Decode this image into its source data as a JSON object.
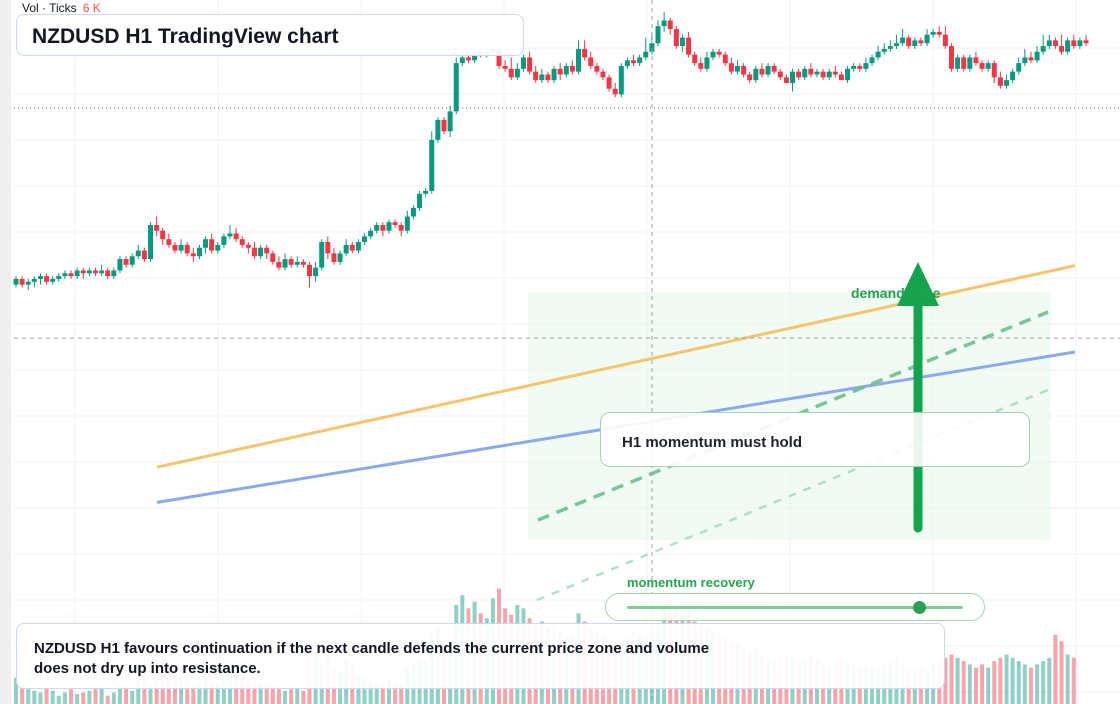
{
  "volume_legend": {
    "label": "Vol · Ticks",
    "value": "6 K"
  },
  "title": "NZDUSD H1 TradingView chart",
  "callout_text": "H1 momentum must hold",
  "zone_label": "demand zone",
  "momentum_label": "momentum recovery",
  "momentum_level": 0.87,
  "summary": "NZDUSD H1 favours continuation if the next candle defends the current price zone and volume does not dry up into resistance.",
  "colors": {
    "up": "#089981",
    "down": "#f23645",
    "ema_fast": "#f7c46c",
    "ema_slow": "#8aa9ee",
    "zone": "#e6f6ea",
    "arrow": "#14a44d",
    "trend": "#69c289"
  },
  "chart_data": {
    "type": "candlestick",
    "symbol": "NZDUSD",
    "timeframe": "H1",
    "price_range": [
      0,
      100
    ],
    "up_color": "#089981",
    "down_color": "#f23645",
    "candles": [
      [
        4,
        6,
        3,
        7
      ],
      [
        6,
        4,
        3,
        7
      ],
      [
        4,
        5,
        2,
        6
      ],
      [
        5,
        6,
        3,
        7
      ],
      [
        6,
        7,
        4,
        8
      ],
      [
        7,
        5,
        4,
        8
      ],
      [
        5,
        6,
        4,
        7
      ],
      [
        6,
        7,
        5,
        8
      ],
      [
        7,
        8,
        6,
        9
      ],
      [
        8,
        7,
        6,
        9
      ],
      [
        7,
        9,
        6,
        10
      ],
      [
        9,
        8,
        6,
        10
      ],
      [
        8,
        9,
        7,
        10
      ],
      [
        9,
        8,
        7,
        10
      ],
      [
        8,
        9,
        7,
        11
      ],
      [
        9,
        7,
        6,
        10
      ],
      [
        7,
        9,
        6,
        10
      ],
      [
        9,
        13,
        8,
        14
      ],
      [
        13,
        11,
        10,
        14
      ],
      [
        11,
        14,
        10,
        15
      ],
      [
        14,
        16,
        13,
        18
      ],
      [
        16,
        13,
        12,
        17
      ],
      [
        13,
        25,
        12,
        26
      ],
      [
        25,
        23,
        21,
        28
      ],
      [
        23,
        20,
        18,
        24
      ],
      [
        20,
        18,
        17,
        22
      ],
      [
        18,
        16,
        15,
        19
      ],
      [
        16,
        18,
        15,
        20
      ],
      [
        18,
        15,
        14,
        19
      ],
      [
        15,
        14,
        12,
        17
      ],
      [
        14,
        17,
        13,
        18
      ],
      [
        17,
        20,
        15,
        21
      ],
      [
        20,
        16,
        15,
        22
      ],
      [
        16,
        18,
        15,
        19
      ],
      [
        18,
        21,
        17,
        22
      ],
      [
        21,
        22,
        20,
        25
      ],
      [
        22,
        20,
        19,
        24
      ],
      [
        20,
        18,
        17,
        21
      ],
      [
        18,
        17,
        15,
        19
      ],
      [
        17,
        14,
        13,
        19
      ],
      [
        14,
        17,
        13,
        18
      ],
      [
        17,
        15,
        13,
        18
      ],
      [
        15,
        12,
        11,
        16
      ],
      [
        12,
        10,
        9,
        14
      ],
      [
        10,
        13,
        9,
        15
      ],
      [
        13,
        11,
        10,
        14
      ],
      [
        11,
        12,
        10,
        14
      ],
      [
        12,
        11,
        10,
        13
      ],
      [
        11,
        7,
        3,
        12
      ],
      [
        7,
        10,
        5,
        12
      ],
      [
        10,
        19,
        9,
        20
      ],
      [
        19,
        15,
        13,
        21
      ],
      [
        15,
        12,
        11,
        17
      ],
      [
        12,
        15,
        11,
        16
      ],
      [
        15,
        18,
        14,
        20
      ],
      [
        18,
        16,
        15,
        19
      ],
      [
        16,
        19,
        15,
        20
      ],
      [
        19,
        21,
        18,
        22
      ],
      [
        21,
        23,
        20,
        24
      ],
      [
        23,
        25,
        22,
        26
      ],
      [
        25,
        23,
        21,
        26
      ],
      [
        23,
        26,
        22,
        27
      ],
      [
        26,
        25,
        24,
        27
      ],
      [
        25,
        23,
        21,
        26
      ],
      [
        23,
        28,
        22,
        30
      ],
      [
        28,
        31,
        27,
        32
      ],
      [
        31,
        36,
        30,
        37
      ],
      [
        36,
        37,
        35,
        38
      ],
      [
        37,
        55,
        36,
        58
      ],
      [
        55,
        62,
        54,
        63
      ],
      [
        62,
        58,
        57,
        63
      ],
      [
        58,
        65,
        56,
        67
      ],
      [
        65,
        82,
        64,
        84
      ],
      [
        82,
        84,
        81,
        85
      ],
      [
        84,
        83,
        82,
        86
      ],
      [
        83,
        86,
        82,
        87
      ],
      [
        86,
        85,
        84,
        88
      ],
      [
        85,
        86,
        84,
        87
      ],
      [
        86,
        87,
        85,
        88
      ],
      [
        87,
        81,
        80,
        88
      ],
      [
        81,
        80,
        79,
        83
      ],
      [
        80,
        77,
        76,
        84
      ],
      [
        77,
        80,
        76,
        82
      ],
      [
        80,
        84,
        79,
        85
      ],
      [
        84,
        79,
        78,
        86
      ],
      [
        79,
        76,
        75,
        81
      ],
      [
        76,
        78,
        75,
        80
      ],
      [
        78,
        76,
        75,
        79
      ],
      [
        76,
        80,
        75,
        81
      ],
      [
        80,
        78,
        76,
        82
      ],
      [
        78,
        81,
        77,
        82
      ],
      [
        81,
        79,
        78,
        83
      ],
      [
        79,
        87,
        78,
        90
      ],
      [
        87,
        84,
        83,
        90
      ],
      [
        84,
        81,
        80,
        86
      ],
      [
        81,
        79,
        78,
        82
      ],
      [
        79,
        77,
        76,
        80
      ],
      [
        77,
        73,
        72,
        78
      ],
      [
        73,
        71,
        70,
        75
      ],
      [
        71,
        81,
        70,
        82
      ],
      [
        81,
        83,
        80,
        84
      ],
      [
        83,
        82,
        81,
        85
      ],
      [
        82,
        84,
        81,
        85
      ],
      [
        84,
        86,
        83,
        91
      ],
      [
        86,
        89,
        85,
        93
      ],
      [
        89,
        95,
        88,
        97
      ],
      [
        95,
        97,
        93,
        100
      ],
      [
        97,
        94,
        92,
        98
      ],
      [
        94,
        88,
        87,
        95
      ],
      [
        88,
        91,
        86,
        92
      ],
      [
        91,
        85,
        84,
        93
      ],
      [
        85,
        82,
        81,
        86
      ],
      [
        82,
        80,
        79,
        84
      ],
      [
        80,
        84,
        79,
        86
      ],
      [
        84,
        86,
        83,
        87
      ],
      [
        86,
        85,
        84,
        87
      ],
      [
        85,
        82,
        81,
        86
      ],
      [
        82,
        79,
        78,
        84
      ],
      [
        79,
        81,
        78,
        83
      ],
      [
        81,
        78,
        77,
        82
      ],
      [
        78,
        76,
        75,
        79
      ],
      [
        76,
        80,
        75,
        81
      ],
      [
        80,
        78,
        77,
        82
      ],
      [
        78,
        81,
        77,
        82
      ],
      [
        81,
        79,
        78,
        82
      ],
      [
        79,
        77,
        76,
        80
      ],
      [
        77,
        75,
        75,
        78
      ],
      [
        75,
        79,
        72,
        80
      ],
      [
        79,
        77,
        76,
        80
      ],
      [
        77,
        80,
        76,
        81
      ],
      [
        80,
        78,
        77,
        82
      ],
      [
        78,
        79,
        77,
        80
      ],
      [
        79,
        77,
        76,
        80
      ],
      [
        77,
        79,
        76,
        80
      ],
      [
        79,
        78,
        77,
        81
      ],
      [
        78,
        76,
        76,
        79
      ],
      [
        76,
        80,
        75,
        81
      ],
      [
        80,
        81,
        79,
        82
      ],
      [
        81,
        80,
        79,
        82
      ],
      [
        80,
        82,
        79,
        84
      ],
      [
        82,
        84,
        81,
        85
      ],
      [
        84,
        86,
        83,
        88
      ],
      [
        86,
        87,
        85,
        89
      ],
      [
        87,
        88,
        86,
        90
      ],
      [
        88,
        89,
        87,
        92
      ],
      [
        89,
        91,
        88,
        94
      ],
      [
        91,
        88,
        87,
        92
      ],
      [
        88,
        90,
        87,
        91
      ],
      [
        90,
        89,
        88,
        91
      ],
      [
        89,
        92,
        88,
        94
      ],
      [
        92,
        93,
        91,
        94
      ],
      [
        93,
        92,
        91,
        95
      ],
      [
        92,
        88,
        87,
        95
      ],
      [
        88,
        80,
        79,
        89
      ],
      [
        80,
        84,
        79,
        85
      ],
      [
        84,
        80,
        79,
        85
      ],
      [
        80,
        84,
        79,
        85
      ],
      [
        84,
        82,
        81,
        86
      ],
      [
        82,
        80,
        79,
        83
      ],
      [
        80,
        82,
        79,
        83
      ],
      [
        82,
        77,
        75,
        83
      ],
      [
        77,
        74,
        73,
        79
      ],
      [
        74,
        76,
        73,
        78
      ],
      [
        76,
        79,
        75,
        80
      ],
      [
        79,
        82,
        78,
        84
      ],
      [
        82,
        84,
        81,
        87
      ],
      [
        84,
        83,
        82,
        86
      ],
      [
        83,
        86,
        82,
        88
      ],
      [
        86,
        88,
        85,
        92
      ],
      [
        88,
        90,
        87,
        92
      ],
      [
        90,
        88,
        87,
        91
      ],
      [
        88,
        86,
        85,
        92
      ],
      [
        86,
        90,
        85,
        91
      ],
      [
        90,
        88,
        87,
        92
      ],
      [
        88,
        90,
        87,
        91
      ],
      [
        90,
        89,
        88,
        92
      ]
    ],
    "volume": [
      16,
      12,
      9,
      8,
      7,
      10,
      8,
      5,
      7,
      9,
      6,
      7,
      8,
      9,
      10,
      5,
      7,
      12,
      10,
      8,
      14,
      16,
      11,
      22,
      26,
      20,
      18,
      17,
      15,
      12,
      14,
      16,
      13,
      12,
      15,
      25,
      18,
      16,
      15,
      14,
      12,
      11,
      10,
      9,
      8,
      9,
      10,
      8,
      36,
      30,
      24,
      28,
      22,
      20,
      26,
      24,
      18,
      16,
      14,
      13,
      12,
      14,
      13,
      12,
      22,
      24,
      28,
      26,
      42,
      46,
      38,
      34,
      60,
      66,
      58,
      62,
      55,
      52,
      64,
      70,
      58,
      54,
      60,
      58,
      52,
      48,
      50,
      46,
      48,
      44,
      40,
      42,
      55,
      50,
      46,
      44,
      42,
      40,
      38,
      36,
      40,
      44,
      42,
      40,
      44,
      48,
      60,
      64,
      58,
      54,
      56,
      50,
      48,
      46,
      44,
      42,
      40,
      38,
      36,
      34,
      32,
      34,
      30,
      28,
      26,
      28,
      30,
      28,
      26,
      28,
      30,
      26,
      24,
      22,
      26,
      28,
      26,
      24,
      22,
      24,
      22,
      20,
      24,
      26,
      28,
      24,
      22,
      20,
      22,
      20,
      24,
      26,
      28,
      30,
      28,
      26,
      24,
      22,
      24,
      22,
      26,
      28,
      30,
      28,
      26,
      24,
      22,
      24,
      26,
      28,
      42,
      38,
      30,
      28
    ],
    "ema_fast": [
      [
        0,
        37
      ],
      [
        100,
        68.5
      ]
    ],
    "ema_slow": [
      [
        0,
        31.5
      ],
      [
        100,
        55
      ]
    ]
  }
}
